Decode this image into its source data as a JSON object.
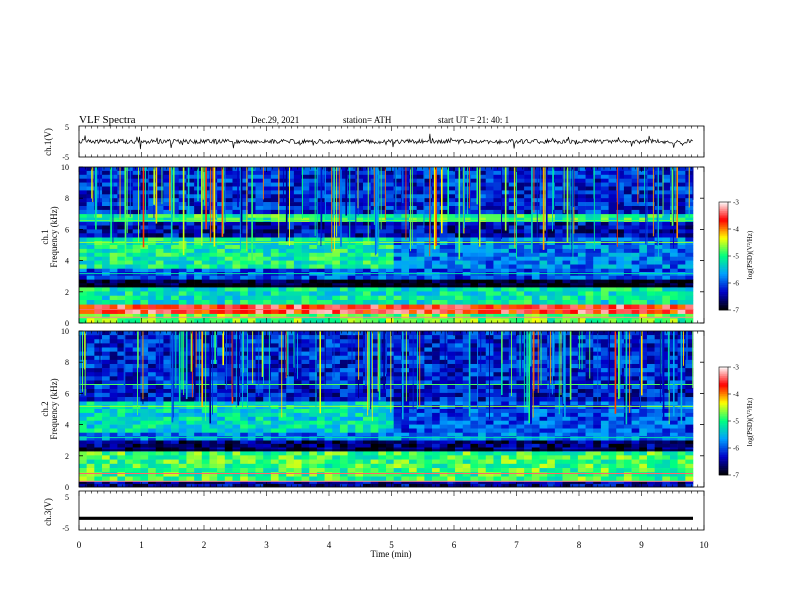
{
  "header": {
    "title": "VLF  Spectra",
    "date": "Dec.29, 2021",
    "station": "station= ATH",
    "start": "start  UT  =    21: 40: 1"
  },
  "chart_data": [
    {
      "type": "line",
      "panel": "ch1-waveform",
      "ylabel": "ch.1(V)",
      "ylim": [
        -5,
        5
      ],
      "yticks": [
        "5",
        "-5"
      ],
      "xlim": [
        0,
        10
      ],
      "level": 0,
      "noise": "small dense fluctuations around 0 with sparse spikes"
    },
    {
      "type": "heatmap",
      "panel": "ch1-spectrogram",
      "ylabel": "ch.1\nFrequency  (kHz)",
      "ylim": [
        0,
        10
      ],
      "yticks": [
        "0",
        "2",
        "4",
        "6",
        "8",
        "10"
      ],
      "xlim": [
        0,
        10
      ],
      "colorbar": {
        "label": "log(PSD)(V²/Hz)",
        "ticks": [
          "-3",
          "-4",
          "-5",
          "-6",
          "-7"
        ],
        "range": [
          -7,
          -3
        ],
        "colors": [
          "#000000",
          "#0000c8",
          "#00a0ff",
          "#00ff80",
          "#ffff00",
          "#ff0000",
          "#ffffff"
        ]
      },
      "bands": [
        {
          "from": 0.0,
          "to": 0.6,
          "level": -4.8
        },
        {
          "from": 0.6,
          "to": 1.2,
          "level": -3.6
        },
        {
          "from": 1.2,
          "to": 2.3,
          "level": -5.2
        },
        {
          "from": 2.3,
          "to": 2.8,
          "level": -6.9
        },
        {
          "from": 2.8,
          "to": 3.5,
          "level": -6.0
        },
        {
          "from": 3.5,
          "to": 5.5,
          "level": -5.1
        },
        {
          "from": 5.5,
          "to": 6.5,
          "level": -6.4
        },
        {
          "from": 6.5,
          "to": 7.0,
          "level": -5.0
        },
        {
          "from": 7.0,
          "to": 10.0,
          "level": -6.2
        }
      ]
    },
    {
      "type": "heatmap",
      "panel": "ch2-spectrogram",
      "ylabel": "ch.2\nFrequency  (kHz)",
      "ylim": [
        0,
        10
      ],
      "yticks": [
        "0",
        "2",
        "4",
        "6",
        "8",
        "10"
      ],
      "xlim": [
        0,
        10
      ],
      "colorbar": {
        "label": "log(PSD)(V²/Hz)",
        "ticks": [
          "-3",
          "-4",
          "-5",
          "-6",
          "-7"
        ],
        "range": [
          -7,
          -3
        ],
        "colors": [
          "#000000",
          "#0000c8",
          "#00a0ff",
          "#00ff80",
          "#ffff00",
          "#ff0000",
          "#ffffff"
        ]
      },
      "bands": [
        {
          "from": 0.0,
          "to": 0.4,
          "level": -6.5
        },
        {
          "from": 0.4,
          "to": 2.3,
          "level": -4.9
        },
        {
          "from": 2.3,
          "to": 3.0,
          "level": -6.6
        },
        {
          "from": 3.0,
          "to": 3.5,
          "level": -5.8
        },
        {
          "from": 3.5,
          "to": 5.5,
          "level": -5.3
        },
        {
          "from": 5.5,
          "to": 6.3,
          "level": -6.3
        },
        {
          "from": 6.3,
          "to": 10.0,
          "level": -6.2
        }
      ]
    },
    {
      "type": "line",
      "panel": "ch3-waveform",
      "ylabel": "ch.3(V)",
      "ylim": [
        -5,
        5
      ],
      "yticks": [
        "5",
        "-5"
      ],
      "xlim": [
        0,
        10
      ],
      "level": -2
    }
  ],
  "xaxis": {
    "label": "Time  (min)",
    "ticks": [
      "0",
      "1",
      "2",
      "3",
      "4",
      "5",
      "6",
      "7",
      "8",
      "9",
      "10"
    ],
    "range": [
      0,
      10
    ]
  }
}
